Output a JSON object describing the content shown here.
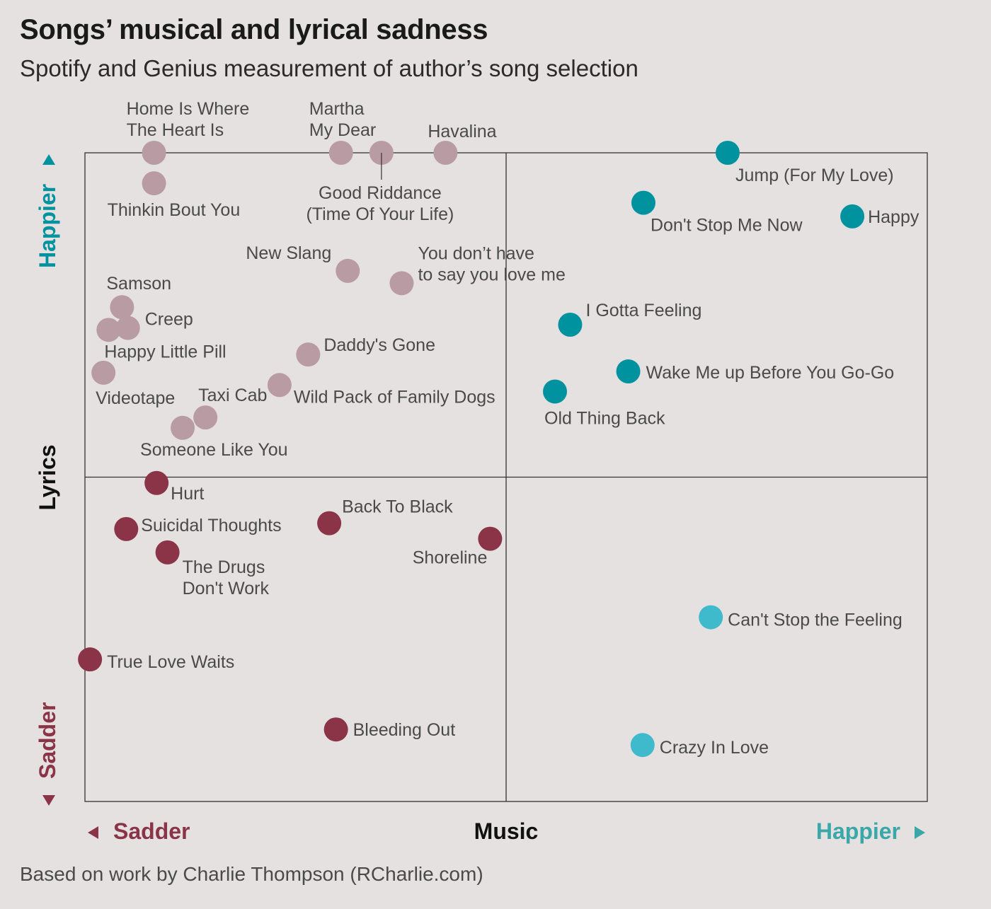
{
  "title": "Songs’ musical and lyrical sadness",
  "subtitle": "Spotify and Genius measurement of author’s song selection",
  "source": "Based on work by Charlie Thompson (RCharlie.com)",
  "colors": {
    "background": "#e4e1e0",
    "sad_music_happy_lyrics": "#b99ba3",
    "sad_both": "#8b3447",
    "happy_both": "#00939f",
    "happy_music_sad_lyrics": "#3fb9cc",
    "sadder_label": "#8b3447",
    "happier_x_label": "#3aa8a8",
    "happier_y_label": "#00939f"
  },
  "chart_data": {
    "type": "scatter",
    "title": "Songs’ musical and lyrical sadness",
    "xlabel": "Music",
    "ylabel": "Lyrics",
    "x_low_label": "Sadder",
    "x_high_label": "Happier",
    "y_low_label": "Sadder",
    "y_high_label": "Happier",
    "xlim": [
      0,
      1
    ],
    "ylim": [
      0,
      1
    ],
    "midlines": {
      "x": 0.5,
      "y": 0.5
    },
    "grid": false,
    "series": [
      {
        "color_key": "sad_music_happy_lyrics",
        "points": [
          {
            "label": "Home Is Where\nThe Heart Is",
            "x": 0.082,
            "y": 1.0
          },
          {
            "label": "Thinkin Bout You",
            "x": 0.082,
            "y": 0.953
          },
          {
            "label": "Martha\nMy Dear",
            "x": 0.304,
            "y": 1.0
          },
          {
            "label": "Good Riddance\n(Time Of Your Life)",
            "x": 0.352,
            "y": 1.0
          },
          {
            "label": "Havalina",
            "x": 0.428,
            "y": 1.0
          },
          {
            "label": "New Slang",
            "x": 0.312,
            "y": 0.818
          },
          {
            "label": "You don’t have\nto say you love me",
            "x": 0.376,
            "y": 0.799
          },
          {
            "label": "Samson",
            "x": 0.044,
            "y": 0.762
          },
          {
            "label": "Creep",
            "x": 0.051,
            "y": 0.73
          },
          {
            "label": "Happy Little Pill",
            "x": 0.028,
            "y": 0.727
          },
          {
            "label": "Videotape",
            "x": 0.022,
            "y": 0.661
          },
          {
            "label": "Daddy's Gone",
            "x": 0.265,
            "y": 0.689
          },
          {
            "label": "Wild Pack of Family Dogs",
            "x": 0.231,
            "y": 0.642
          },
          {
            "label": "Taxi Cab",
            "x": 0.143,
            "y": 0.592
          },
          {
            "label": "Someone Like You",
            "x": 0.116,
            "y": 0.576
          }
        ]
      },
      {
        "color_key": "sad_both",
        "points": [
          {
            "label": "Hurt",
            "x": 0.085,
            "y": 0.491
          },
          {
            "label": "Suicidal Thoughts",
            "x": 0.049,
            "y": 0.42
          },
          {
            "label": "The Drugs\nDon't Work",
            "x": 0.098,
            "y": 0.384
          },
          {
            "label": "Back To Black",
            "x": 0.29,
            "y": 0.429
          },
          {
            "label": "Shoreline",
            "x": 0.481,
            "y": 0.405
          },
          {
            "label": "True Love Waits",
            "x": 0.006,
            "y": 0.219
          },
          {
            "label": "Bleeding Out",
            "x": 0.298,
            "y": 0.111
          }
        ]
      },
      {
        "color_key": "happy_both",
        "points": [
          {
            "label": "Jump (For My Love)",
            "x": 0.763,
            "y": 1.0
          },
          {
            "label": "Don't Stop Me Now",
            "x": 0.663,
            "y": 0.923
          },
          {
            "label": "Happy",
            "x": 0.911,
            "y": 0.902
          },
          {
            "label": "I Gotta Feeling",
            "x": 0.576,
            "y": 0.735
          },
          {
            "label": "Wake Me up Before You Go-Go",
            "x": 0.645,
            "y": 0.663
          },
          {
            "label": "Old Thing Back",
            "x": 0.558,
            "y": 0.632
          }
        ]
      },
      {
        "color_key": "happy_music_sad_lyrics",
        "points": [
          {
            "label": "Can't Stop the Feeling",
            "x": 0.743,
            "y": 0.284
          },
          {
            "label": "Crazy In Love",
            "x": 0.662,
            "y": 0.087
          }
        ]
      }
    ]
  }
}
